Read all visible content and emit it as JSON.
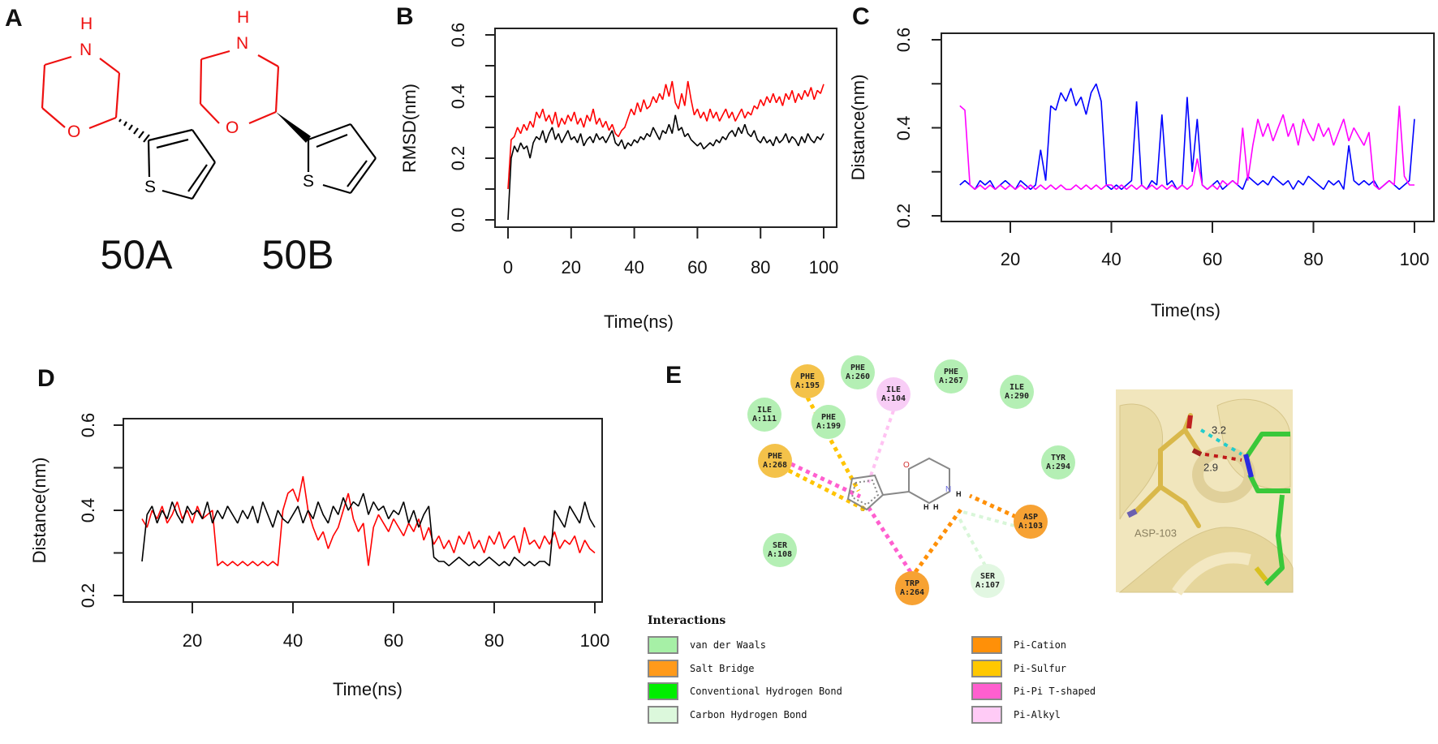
{
  "panels": {
    "a": "A",
    "b": "B",
    "c": "C",
    "d": "D",
    "e": "E"
  },
  "molecules": [
    {
      "name": "50A",
      "atoms": {
        "h": "H",
        "n": "N",
        "o": "O",
        "s": "S"
      }
    },
    {
      "name": "50B",
      "atoms": {
        "h": "H",
        "n": "N",
        "o": "O",
        "s": "S"
      }
    }
  ],
  "chart_data": [
    {
      "id": "B",
      "type": "line",
      "title": "",
      "xlabel": "Time(ns)",
      "ylabel": "RMSD(nm)",
      "xlim": [
        0,
        100
      ],
      "ylim": [
        0,
        0.6
      ],
      "grid": false,
      "xticks": [
        "0",
        "20",
        "40",
        "60",
        "80",
        "100"
      ],
      "xtick_values": [
        0,
        20,
        40,
        60,
        80,
        100
      ],
      "yticks": [
        "0.0",
        "0.2",
        "0.4",
        "0.6"
      ],
      "ytick_values": [
        0,
        0.2,
        0.4,
        0.6
      ],
      "x_start": 0,
      "x_step": 1,
      "series": [
        {
          "name": "red",
          "color": "#ff0000",
          "values": [
            0.1,
            0.26,
            0.27,
            0.3,
            0.28,
            0.31,
            0.29,
            0.32,
            0.3,
            0.35,
            0.33,
            0.36,
            0.32,
            0.34,
            0.31,
            0.35,
            0.3,
            0.33,
            0.31,
            0.34,
            0.32,
            0.35,
            0.31,
            0.33,
            0.3,
            0.34,
            0.32,
            0.36,
            0.31,
            0.33,
            0.3,
            0.32,
            0.29,
            0.31,
            0.28,
            0.27,
            0.29,
            0.3,
            0.33,
            0.36,
            0.34,
            0.38,
            0.35,
            0.39,
            0.36,
            0.37,
            0.4,
            0.38,
            0.41,
            0.39,
            0.44,
            0.4,
            0.45,
            0.38,
            0.36,
            0.41,
            0.37,
            0.45,
            0.39,
            0.34,
            0.36,
            0.33,
            0.35,
            0.32,
            0.36,
            0.33,
            0.35,
            0.32,
            0.34,
            0.36,
            0.33,
            0.35,
            0.32,
            0.34,
            0.36,
            0.33,
            0.35,
            0.34,
            0.37,
            0.36,
            0.39,
            0.37,
            0.4,
            0.38,
            0.41,
            0.38,
            0.4,
            0.37,
            0.41,
            0.39,
            0.42,
            0.38,
            0.41,
            0.39,
            0.42,
            0.4,
            0.43,
            0.39,
            0.42,
            0.41,
            0.44
          ]
        },
        {
          "name": "black",
          "color": "#000000",
          "values": [
            0.0,
            0.2,
            0.24,
            0.22,
            0.25,
            0.23,
            0.24,
            0.2,
            0.25,
            0.27,
            0.26,
            0.29,
            0.25,
            0.28,
            0.3,
            0.26,
            0.28,
            0.25,
            0.27,
            0.29,
            0.26,
            0.27,
            0.25,
            0.28,
            0.24,
            0.26,
            0.27,
            0.25,
            0.28,
            0.26,
            0.27,
            0.25,
            0.27,
            0.29,
            0.25,
            0.24,
            0.26,
            0.23,
            0.25,
            0.24,
            0.26,
            0.25,
            0.27,
            0.26,
            0.28,
            0.27,
            0.3,
            0.28,
            0.26,
            0.29,
            0.28,
            0.31,
            0.28,
            0.34,
            0.29,
            0.3,
            0.27,
            0.28,
            0.26,
            0.25,
            0.24,
            0.25,
            0.23,
            0.24,
            0.25,
            0.24,
            0.26,
            0.25,
            0.27,
            0.26,
            0.28,
            0.29,
            0.27,
            0.3,
            0.28,
            0.31,
            0.28,
            0.27,
            0.29,
            0.26,
            0.25,
            0.27,
            0.25,
            0.26,
            0.24,
            0.27,
            0.25,
            0.26,
            0.28,
            0.25,
            0.27,
            0.26,
            0.24,
            0.27,
            0.25,
            0.28,
            0.26,
            0.25,
            0.27,
            0.26,
            0.28
          ]
        }
      ]
    },
    {
      "id": "C",
      "type": "line",
      "title": "",
      "xlabel": "Time(ns)",
      "ylabel": "Distance(nm)",
      "xlim": [
        10,
        100
      ],
      "ylim": [
        0.2,
        0.6
      ],
      "grid": false,
      "xticks": [
        "20",
        "40",
        "60",
        "80",
        "100"
      ],
      "xtick_values": [
        20,
        40,
        60,
        80,
        100
      ],
      "yticks": [
        "0.2",
        "0.4",
        "0.6"
      ],
      "ytick_values": [
        0.2,
        0.4,
        0.6
      ],
      "x_start": 10,
      "x_step": 1,
      "series": [
        {
          "name": "blue",
          "color": "#0000ff",
          "values": [
            0.27,
            0.28,
            0.27,
            0.26,
            0.28,
            0.27,
            0.28,
            0.26,
            0.27,
            0.28,
            0.27,
            0.26,
            0.28,
            0.27,
            0.26,
            0.27,
            0.35,
            0.28,
            0.45,
            0.44,
            0.48,
            0.46,
            0.49,
            0.45,
            0.47,
            0.43,
            0.48,
            0.5,
            0.46,
            0.27,
            0.26,
            0.27,
            0.26,
            0.27,
            0.28,
            0.46,
            0.27,
            0.26,
            0.28,
            0.27,
            0.43,
            0.27,
            0.28,
            0.26,
            0.27,
            0.47,
            0.3,
            0.42,
            0.27,
            0.26,
            0.27,
            0.28,
            0.26,
            0.27,
            0.28,
            0.27,
            0.26,
            0.29,
            0.28,
            0.27,
            0.28,
            0.27,
            0.29,
            0.28,
            0.27,
            0.28,
            0.26,
            0.28,
            0.27,
            0.29,
            0.28,
            0.27,
            0.26,
            0.28,
            0.27,
            0.28,
            0.26,
            0.36,
            0.28,
            0.27,
            0.28,
            0.27,
            0.28,
            0.26,
            0.27,
            0.28,
            0.27,
            0.26,
            0.27,
            0.28,
            0.42
          ]
        },
        {
          "name": "magenta",
          "color": "#ff00ff",
          "values": [
            0.45,
            0.44,
            0.27,
            0.26,
            0.27,
            0.26,
            0.27,
            0.26,
            0.27,
            0.26,
            0.27,
            0.26,
            0.27,
            0.26,
            0.27,
            0.26,
            0.27,
            0.26,
            0.27,
            0.26,
            0.27,
            0.26,
            0.26,
            0.27,
            0.26,
            0.27,
            0.26,
            0.27,
            0.26,
            0.27,
            0.27,
            0.26,
            0.27,
            0.26,
            0.27,
            0.26,
            0.27,
            0.26,
            0.27,
            0.26,
            0.27,
            0.26,
            0.27,
            0.26,
            0.27,
            0.26,
            0.27,
            0.33,
            0.27,
            0.26,
            0.27,
            0.26,
            0.28,
            0.27,
            0.28,
            0.27,
            0.4,
            0.28,
            0.36,
            0.42,
            0.38,
            0.41,
            0.37,
            0.4,
            0.43,
            0.38,
            0.41,
            0.36,
            0.42,
            0.39,
            0.37,
            0.41,
            0.38,
            0.4,
            0.36,
            0.39,
            0.42,
            0.37,
            0.4,
            0.38,
            0.36,
            0.39,
            0.27,
            0.26,
            0.27,
            0.28,
            0.27,
            0.45,
            0.29,
            0.27,
            0.27
          ]
        }
      ]
    },
    {
      "id": "D",
      "type": "line",
      "title": "",
      "xlabel": "Time(ns)",
      "ylabel": "Distance(nm)",
      "xlim": [
        10,
        100
      ],
      "ylim": [
        0.2,
        0.6
      ],
      "grid": false,
      "xticks": [
        "20",
        "40",
        "60",
        "80",
        "100"
      ],
      "xtick_values": [
        20,
        40,
        60,
        80,
        100
      ],
      "yticks": [
        "0.2",
        "0.4",
        "0.6"
      ],
      "ytick_values": [
        0.2,
        0.4,
        0.6
      ],
      "x_start": 10,
      "x_step": 1,
      "series": [
        {
          "name": "red",
          "color": "#ff0000",
          "values": [
            0.38,
            0.36,
            0.4,
            0.38,
            0.41,
            0.37,
            0.39,
            0.42,
            0.38,
            0.4,
            0.37,
            0.41,
            0.38,
            0.39,
            0.4,
            0.27,
            0.28,
            0.27,
            0.28,
            0.27,
            0.28,
            0.27,
            0.28,
            0.27,
            0.28,
            0.27,
            0.28,
            0.27,
            0.4,
            0.44,
            0.45,
            0.42,
            0.48,
            0.4,
            0.36,
            0.33,
            0.35,
            0.31,
            0.34,
            0.36,
            0.4,
            0.44,
            0.38,
            0.35,
            0.37,
            0.27,
            0.36,
            0.39,
            0.37,
            0.35,
            0.38,
            0.36,
            0.34,
            0.37,
            0.35,
            0.38,
            0.33,
            0.36,
            0.32,
            0.34,
            0.31,
            0.33,
            0.3,
            0.34,
            0.32,
            0.35,
            0.31,
            0.33,
            0.3,
            0.34,
            0.32,
            0.35,
            0.31,
            0.33,
            0.34,
            0.3,
            0.36,
            0.32,
            0.33,
            0.31,
            0.34,
            0.32,
            0.35,
            0.31,
            0.33,
            0.32,
            0.34,
            0.3,
            0.33,
            0.31,
            0.3
          ]
        },
        {
          "name": "black",
          "color": "#000000",
          "values": [
            0.28,
            0.39,
            0.41,
            0.37,
            0.4,
            0.38,
            0.42,
            0.39,
            0.37,
            0.41,
            0.39,
            0.4,
            0.38,
            0.42,
            0.37,
            0.4,
            0.38,
            0.41,
            0.39,
            0.37,
            0.4,
            0.38,
            0.41,
            0.37,
            0.42,
            0.39,
            0.36,
            0.4,
            0.38,
            0.37,
            0.39,
            0.41,
            0.37,
            0.4,
            0.38,
            0.42,
            0.39,
            0.37,
            0.41,
            0.39,
            0.43,
            0.4,
            0.42,
            0.41,
            0.44,
            0.39,
            0.42,
            0.4,
            0.41,
            0.38,
            0.4,
            0.39,
            0.42,
            0.37,
            0.4,
            0.36,
            0.39,
            0.41,
            0.29,
            0.28,
            0.28,
            0.27,
            0.28,
            0.29,
            0.28,
            0.27,
            0.28,
            0.27,
            0.28,
            0.29,
            0.28,
            0.27,
            0.28,
            0.27,
            0.29,
            0.28,
            0.27,
            0.28,
            0.27,
            0.28,
            0.28,
            0.27,
            0.4,
            0.38,
            0.36,
            0.41,
            0.39,
            0.37,
            0.42,
            0.38,
            0.36
          ]
        }
      ]
    }
  ],
  "interaction_diagram": {
    "residues": [
      {
        "name": "PHE",
        "id": "A:195",
        "type": "pi_sulfur"
      },
      {
        "name": "PHE",
        "id": "A:260",
        "type": "vdw"
      },
      {
        "name": "ILE",
        "id": "A:104",
        "type": "pi_alkyl"
      },
      {
        "name": "PHE",
        "id": "A:267",
        "type": "vdw"
      },
      {
        "name": "ILE",
        "id": "A:290",
        "type": "vdw"
      },
      {
        "name": "ILE",
        "id": "A:111",
        "type": "vdw"
      },
      {
        "name": "PHE",
        "id": "A:199",
        "type": "vdw"
      },
      {
        "name": "PHE",
        "id": "A:268",
        "type": "pi_sulfur"
      },
      {
        "name": "TYR",
        "id": "A:294",
        "type": "vdw"
      },
      {
        "name": "SER",
        "id": "A:108",
        "type": "vdw"
      },
      {
        "name": "ASP",
        "id": "A:103",
        "type": "salt_bridge"
      },
      {
        "name": "TRP",
        "id": "A:264",
        "type": "pi_cation"
      },
      {
        "name": "SER",
        "id": "A:107",
        "type": "carbon_hbond"
      }
    ],
    "ligand_atoms": {
      "o": "O",
      "n": "N",
      "h": "H",
      "s": "S"
    },
    "legend_title": "Interactions",
    "legend": [
      {
        "label": "van der Waals",
        "color": "#a6f0a6"
      },
      {
        "label": "Salt Bridge",
        "color": "#ff9a1a"
      },
      {
        "label": "Conventional Hydrogen Bond",
        "color": "#00ee00"
      },
      {
        "label": "Carbon Hydrogen Bond",
        "color": "#dcf8dc"
      },
      {
        "label": "Pi-Cation",
        "color": "#ff9008"
      },
      {
        "label": "Pi-Sulfur",
        "color": "#ffc800"
      },
      {
        "label": "Pi-Pi T-shaped",
        "color": "#ff5fcf"
      },
      {
        "label": "Pi-Alkyl",
        "color": "#ffcbf6"
      }
    ],
    "residue_colors": {
      "vdw": "#b4efb4",
      "pi_sulfur": "#f4c24a",
      "pi_alkyl": "#f8cdf6",
      "salt_bridge": "#f7a233",
      "pi_cation": "#f7a233",
      "carbon_hbond": "#e2f7e2"
    }
  },
  "pose": {
    "distance_1": "3.2",
    "distance_2": "2.9",
    "residue_label": "ASP-103"
  }
}
